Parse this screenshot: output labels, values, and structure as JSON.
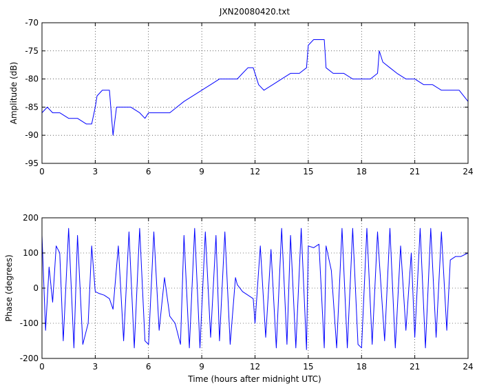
{
  "figure_title": "JXN20080420.txt",
  "line_color": "#0000ff",
  "chart_data": [
    {
      "type": "line",
      "title": "JXN20080420.txt",
      "xlabel": "",
      "ylabel": "Amplitude (dB)",
      "xlim": [
        0,
        24
      ],
      "ylim": [
        -95,
        -70
      ],
      "xticks": [
        0,
        3,
        6,
        9,
        12,
        15,
        18,
        21,
        24
      ],
      "yticks": [
        -95,
        -90,
        -85,
        -80,
        -75,
        -70
      ],
      "grid": true,
      "series": [
        {
          "x": [
            0,
            0.3,
            0.6,
            1.0,
            1.5,
            2.0,
            2.5,
            2.8,
            3.0,
            3.1,
            3.4,
            3.8,
            3.9,
            4.0,
            4.2,
            4.5,
            5.0,
            5.5,
            5.8,
            6.0,
            6.3,
            6.8,
            7.2,
            7.6,
            8.0,
            8.5,
            9.0,
            9.5,
            10.0,
            10.5,
            11.0,
            11.3,
            11.6,
            11.9,
            12.2,
            12.5,
            13.0,
            13.5,
            14.0,
            14.5,
            14.9,
            15.0,
            15.3,
            15.6,
            15.9,
            16.0,
            16.4,
            17.0,
            17.5,
            18.0,
            18.5,
            18.9,
            19.0,
            19.2,
            19.6,
            20.0,
            20.5,
            21.0,
            21.5,
            22.0,
            22.5,
            23.0,
            23.5,
            24.0
          ],
          "y": [
            -86,
            -85,
            -86,
            -86,
            -87,
            -87,
            -88,
            -88,
            -85,
            -83,
            -82,
            -82,
            -86,
            -90,
            -85,
            -85,
            -85,
            -86,
            -87,
            -86,
            -86,
            -86,
            -86,
            -85,
            -84,
            -83,
            -82,
            -81,
            -80,
            -80,
            -80,
            -79,
            -78,
            -78,
            -81,
            -82,
            -81,
            -80,
            -79,
            -79,
            -78,
            -74,
            -73,
            -73,
            -73,
            -78,
            -79,
            -79,
            -80,
            -80,
            -80,
            -79,
            -75,
            -77,
            -78,
            -79,
            -80,
            -80,
            -81,
            -81,
            -82,
            -82,
            -82,
            -84
          ]
        }
      ]
    },
    {
      "type": "line",
      "title": "",
      "xlabel": "Time (hours after midnight UTC)",
      "ylabel": "Phase (degrees)",
      "xlim": [
        0,
        24
      ],
      "ylim": [
        -200,
        200
      ],
      "xticks": [
        0,
        3,
        6,
        9,
        12,
        15,
        18,
        21,
        24
      ],
      "yticks": [
        -200,
        -100,
        0,
        100,
        200
      ],
      "grid": true,
      "series": [
        {
          "x": [
            0,
            0.2,
            0.4,
            0.6,
            0.8,
            1.0,
            1.2,
            1.5,
            1.8,
            2.0,
            2.3,
            2.6,
            2.8,
            3.0,
            3.2,
            3.5,
            3.8,
            4.0,
            4.3,
            4.6,
            4.9,
            5.2,
            5.5,
            5.8,
            6.0,
            6.3,
            6.6,
            6.9,
            7.2,
            7.5,
            7.8,
            8.0,
            8.3,
            8.6,
            8.9,
            9.2,
            9.5,
            9.8,
            10.0,
            10.3,
            10.6,
            10.9,
            11.0,
            11.3,
            11.6,
            11.9,
            12.0,
            12.3,
            12.6,
            12.9,
            13.2,
            13.5,
            13.8,
            14.0,
            14.3,
            14.6,
            14.9,
            15.0,
            15.3,
            15.6,
            15.9,
            16.0,
            16.3,
            16.6,
            16.9,
            17.2,
            17.5,
            17.8,
            18.0,
            18.3,
            18.6,
            18.9,
            19.0,
            19.3,
            19.6,
            19.9,
            20.2,
            20.5,
            20.8,
            21.0,
            21.3,
            21.6,
            21.9,
            22.2,
            22.5,
            22.8,
            23.0,
            23.3,
            23.6,
            24.0
          ],
          "y": [
            150,
            -120,
            60,
            -40,
            120,
            100,
            -150,
            170,
            -170,
            150,
            -160,
            -100,
            120,
            -10,
            -15,
            -20,
            -30,
            -60,
            120,
            -150,
            160,
            -170,
            170,
            -150,
            -160,
            160,
            -120,
            30,
            -80,
            -100,
            -160,
            150,
            -170,
            170,
            -170,
            160,
            -140,
            150,
            -150,
            160,
            -160,
            30,
            10,
            -10,
            -20,
            -30,
            -100,
            120,
            -140,
            110,
            -170,
            170,
            -160,
            150,
            -170,
            170,
            -175,
            120,
            115,
            125,
            -170,
            120,
            50,
            -170,
            170,
            -170,
            170,
            -160,
            -170,
            170,
            -160,
            160,
            80,
            -150,
            170,
            -170,
            120,
            -120,
            100,
            -140,
            170,
            -170,
            170,
            -140,
            160,
            -120,
            80,
            90,
            90,
            100
          ]
        }
      ]
    }
  ]
}
